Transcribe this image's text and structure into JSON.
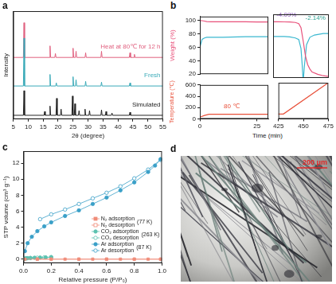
{
  "chart_data": [
    {
      "panel": "a",
      "type": "line",
      "xlabel": "2θ (degree)",
      "ylabel": "Intensity",
      "xlim": [
        5,
        55
      ],
      "xticks": [
        5,
        10,
        15,
        20,
        25,
        30,
        35,
        40,
        45,
        50,
        55
      ],
      "ylim": [
        -5,
        135
      ],
      "tick_labels": "x",
      "series": [
        {
          "name": "Simulated",
          "color": "#222222",
          "x": [
            5,
            8.4,
            8.6,
            8.8,
            15.3,
            15.5,
            15.7,
            17.1,
            17.3,
            17.5,
            19.3,
            19.5,
            19.7,
            20.8,
            21,
            21.2,
            24.6,
            24.8,
            25,
            25.4,
            25.6,
            25.8,
            26.8,
            27,
            27.2,
            28.8,
            29,
            29.2,
            30.3,
            30.5,
            30.7,
            34.3,
            34.5,
            34.7,
            35.8,
            36,
            36.2,
            37.8,
            38,
            38.2,
            43.8,
            44,
            44.2,
            55
          ],
          "values": [
            0,
            0,
            32,
            0,
            0,
            5,
            0,
            0,
            12,
            0,
            0,
            22,
            0,
            0,
            8,
            0,
            0,
            25,
            0,
            0,
            15,
            0,
            0,
            6,
            0,
            0,
            8,
            0,
            0,
            6,
            0,
            0,
            7,
            0,
            0,
            5,
            0,
            0,
            3,
            0,
            0,
            4,
            0,
            0
          ]
        },
        {
          "name": "Fresh",
          "color": "#3aaab8",
          "x": [
            5,
            8.4,
            8.6,
            8.8,
            17.1,
            17.3,
            17.5,
            19.2,
            19.4,
            19.6,
            24.8,
            25,
            25.2,
            25.8,
            26,
            26.2,
            29,
            29.2,
            29.4,
            34.3,
            34.5,
            34.7,
            43.8,
            44,
            44.2,
            55
          ],
          "values": [
            38,
            38,
            100,
            38,
            38,
            53,
            38,
            38,
            42,
            38,
            38,
            50,
            38,
            38,
            46,
            38,
            38,
            44,
            38,
            38,
            43,
            38,
            38,
            42,
            38,
            38
          ]
        },
        {
          "name": "Heat at 80℃ for 12 h",
          "color": "#e0607f",
          "x": [
            5,
            8.4,
            8.6,
            8.8,
            17.1,
            17.3,
            17.5,
            18.9,
            19.1,
            19.3,
            24.8,
            25,
            25.2,
            25.8,
            26,
            26.2,
            29,
            29.2,
            29.4,
            34.3,
            34.5,
            34.7,
            43.8,
            44,
            44.2,
            45.3,
            45.5,
            45.7,
            55
          ],
          "values": [
            75,
            75,
            120,
            75,
            75,
            90,
            75,
            75,
            80,
            75,
            75,
            87,
            75,
            75,
            83,
            75,
            75,
            81,
            75,
            75,
            83,
            75,
            75,
            81,
            75,
            75,
            79,
            75,
            75
          ]
        }
      ]
    },
    {
      "panel": "b",
      "type": "line",
      "xlabel": "Time (min)",
      "x_segments": [
        {
          "xlim": [
            0,
            30
          ],
          "xticks": [
            0,
            25
          ]
        },
        {
          "xlim": [
            425,
            475
          ],
          "xticks": [
            425,
            450,
            475
          ]
        }
      ],
      "subplots": [
        {
          "ylabel": "Weight (%)",
          "ylim": [
            20,
            106
          ],
          "yticks": [
            20,
            40,
            60,
            80,
            100
          ],
          "tick_labels": "y",
          "series": [
            {
              "color": "#e8507a",
              "x": [
                0,
                1,
                2,
                3,
                5,
                10,
                15,
                20,
                25,
                30,
                425,
                430,
                435,
                440,
                445,
                448,
                450,
                452,
                454,
                456,
                458,
                460,
                465,
                470,
                475
              ],
              "values": [
                100,
                99.8,
                99.2,
                98.6,
                98.3,
                98.2,
                98.1,
                98.1,
                98,
                98,
                95.9,
                95.9,
                95.8,
                95.7,
                95,
                93.5,
                88,
                70,
                50,
                38,
                32,
                28,
                25,
                23,
                22
              ]
            },
            {
              "color": "#3ab8d0",
              "x": [
                0,
                1,
                2,
                3,
                5,
                10,
                20,
                30,
                425,
                435,
                440,
                445,
                448,
                450,
                451,
                452,
                453,
                455,
                458,
                462,
                466,
                470,
                475
              ],
              "values": [
                60,
                72,
                74,
                75,
                75,
                75,
                76,
                76,
                76,
                76,
                75.5,
                74,
                72,
                60,
                40,
                15,
                35,
                65,
                75,
                78,
                79,
                80,
                80
              ]
            }
          ],
          "annotations": [
            {
              "text": "-4.09%",
              "x": 437,
              "y": 101,
              "color": "#8e5bbd"
            },
            {
              "text": "-2.14%",
              "x": 463,
              "y": 97,
              "color": "#2a9d8f"
            }
          ]
        },
        {
          "ylabel": "Temperature (℃)",
          "ylim": [
            0,
            600
          ],
          "yticks": [
            0,
            200,
            400,
            600
          ],
          "series": [
            {
              "color": "#e8503a",
              "x": [
                0,
                2,
                4,
                30,
                425,
                430,
                475
              ],
              "values": [
                30,
                60,
                80,
                80,
                80,
                80,
                600
              ]
            }
          ],
          "annotations": [
            {
              "text": "80 ℃",
              "x": 14,
              "y": 160,
              "color": "#e8503a"
            }
          ]
        }
      ]
    },
    {
      "panel": "c",
      "type": "scatter",
      "xlabel": "Relative pressure (P/P₀)",
      "ylabel": "STP volume (cm³ g⁻¹)",
      "xlim": [
        0,
        1
      ],
      "xticks": [
        {
          "value": 0,
          "label": "0.0"
        },
        {
          "value": 0.2,
          "label": "0.2"
        },
        {
          "value": 0.4,
          "label": "0.4"
        },
        {
          "value": 0.6,
          "label": "0.6"
        },
        {
          "value": 0.8,
          "label": "0.8"
        },
        {
          "value": 1,
          "label": "1.0"
        }
      ],
      "ylim": [
        -0.5,
        13.5
      ],
      "yticks": [
        0,
        2,
        4,
        6,
        8,
        10,
        12
      ],
      "legend": "lower right",
      "legend_notes": [
        "(77 K)",
        "(263 K)",
        "(87 K)"
      ],
      "series": [
        {
          "name": "N₂ adsorption",
          "color": "#f08c78",
          "marker": "square",
          "x": [
            0.01,
            0.1,
            0.2,
            0.3,
            0.4,
            0.5,
            0.6,
            0.7,
            0.8,
            0.9,
            0.99
          ],
          "values": [
            0,
            0,
            0,
            0,
            0,
            0,
            0,
            0,
            0,
            0,
            0
          ]
        },
        {
          "name": "N₂ desorption",
          "color": "#f08c78",
          "marker": "open_square",
          "x": [
            0.99,
            0.8,
            0.6,
            0.4,
            0.2,
            0.1
          ],
          "values": [
            0,
            0,
            0,
            0,
            0,
            0
          ]
        },
        {
          "name": "CO₂ adsorption",
          "color": "#5cc2b0",
          "marker": "circle",
          "x": [
            0.005,
            0.01,
            0.02,
            0.03,
            0.05,
            0.08,
            0.12,
            0.16,
            0.2
          ],
          "values": [
            0.05,
            0.08,
            0.1,
            0.12,
            0.15,
            0.18,
            0.2,
            0.22,
            0.25
          ]
        },
        {
          "name": "CO₂ desorption",
          "color": "#5cc2b0",
          "marker": "open_circle",
          "x": [
            0.2,
            0.15,
            0.1,
            0.05,
            0.02
          ],
          "values": [
            0.25,
            0.22,
            0.18,
            0.14,
            0.1
          ]
        },
        {
          "name": "Ar adsorption",
          "color": "#3aa0c8",
          "marker": "circle",
          "x": [
            0.01,
            0.03,
            0.06,
            0.1,
            0.15,
            0.2,
            0.3,
            0.4,
            0.5,
            0.6,
            0.7,
            0.8,
            0.9,
            0.95,
            0.99
          ],
          "values": [
            1,
            2,
            2.8,
            3.5,
            4.1,
            4.6,
            5.4,
            6.1,
            6.9,
            7.7,
            8.6,
            9.6,
            10.9,
            11.7,
            12.5
          ]
        },
        {
          "name": "Ar desorption",
          "color": "#3aa0c8",
          "marker": "open_circle",
          "x": [
            0.99,
            0.9,
            0.8,
            0.7,
            0.6,
            0.5,
            0.4,
            0.3,
            0.2,
            0.12
          ],
          "values": [
            12.4,
            11.2,
            10.1,
            9.1,
            8.3,
            7.6,
            6.9,
            6.2,
            5.6,
            5
          ]
        }
      ]
    }
  ],
  "image": {
    "panel": "d",
    "scale_bar": "200 μm"
  }
}
